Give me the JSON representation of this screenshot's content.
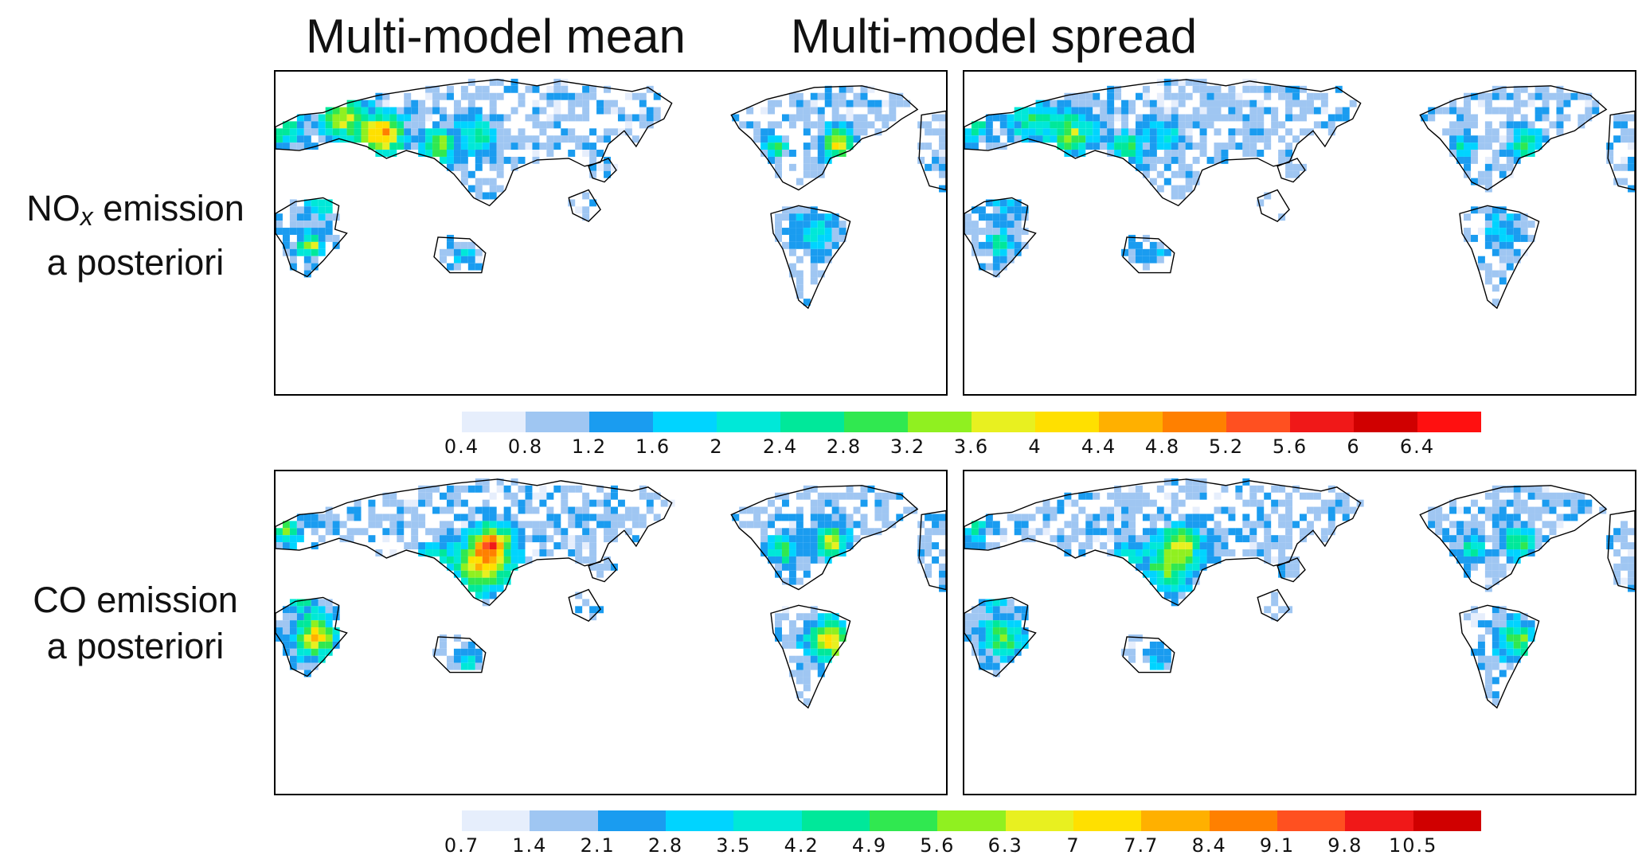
{
  "columns": [
    "Multi-model mean",
    "Multi-model spread"
  ],
  "rows": [
    {
      "label_main": "NO",
      "label_sub": "x",
      "label_rest": " emission",
      "label_line2": "a posteriori"
    },
    {
      "label_main": "CO emission",
      "label_sub": "",
      "label_rest": "",
      "label_line2": "a posteriori"
    }
  ],
  "colorbars": [
    {
      "name": "nox-colorbar",
      "ticks": [
        "0.4",
        "0.8",
        "1.2",
        "1.6",
        "2",
        "2.4",
        "2.8",
        "3.2",
        "3.6",
        "4",
        "4.4",
        "4.8",
        "5.2",
        "5.6",
        "6",
        "6.4"
      ],
      "colors": [
        "#e6eefc",
        "#9fc6f2",
        "#1a9cf0",
        "#00d4ff",
        "#00e8d8",
        "#00e89a",
        "#30e850",
        "#90f020",
        "#e8f020",
        "#ffe000",
        "#ffb000",
        "#ff8000",
        "#ff5020",
        "#f01818",
        "#d00000",
        "#ff1010"
      ]
    },
    {
      "name": "co-colorbar",
      "ticks": [
        "0.7",
        "1.4",
        "2.1",
        "2.8",
        "3.5",
        "4.2",
        "4.9",
        "5.6",
        "6.3",
        "7",
        "7.7",
        "8.4",
        "9.1",
        "9.8",
        "10.5"
      ],
      "colors": [
        "#e6eefc",
        "#9fc6f2",
        "#1a9cf0",
        "#00d4ff",
        "#00e8d8",
        "#00e89a",
        "#30e850",
        "#90f020",
        "#e8f020",
        "#ffe000",
        "#ffb000",
        "#ff8000",
        "#ff5020",
        "#f01818",
        "#d00000"
      ]
    }
  ],
  "maps": [
    {
      "name": "nox-mean-map",
      "field": "nox",
      "variant": "mean"
    },
    {
      "name": "nox-spread-map",
      "field": "nox",
      "variant": "spread"
    },
    {
      "name": "co-mean-map",
      "field": "co",
      "variant": "mean"
    },
    {
      "name": "co-spread-map",
      "field": "co",
      "variant": "spread"
    }
  ]
}
